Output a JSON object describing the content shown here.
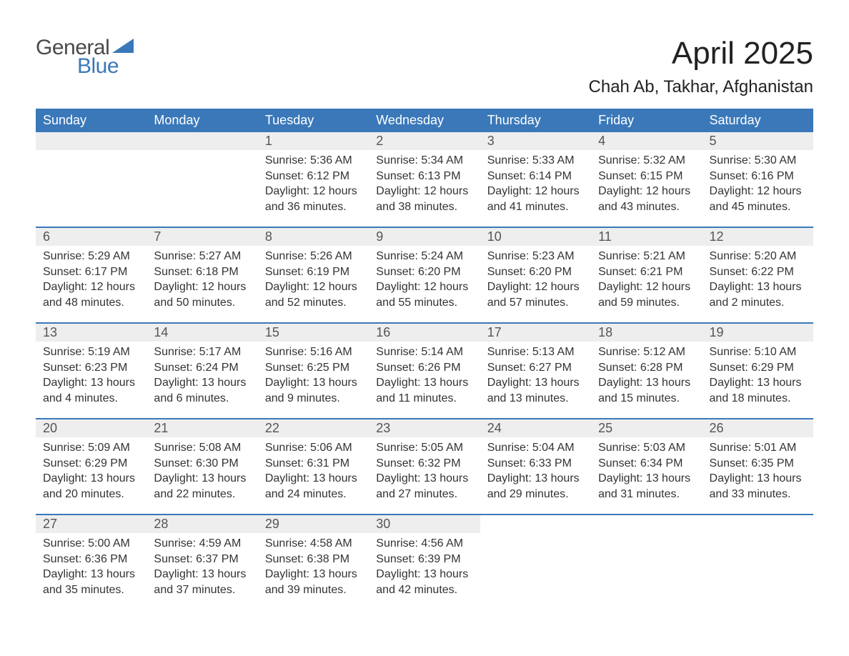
{
  "logo": {
    "text1": "General",
    "text2": "Blue",
    "tri_color": "#3a78b9"
  },
  "title": "April 2025",
  "location": "Chah Ab, Takhar, Afghanistan",
  "colors": {
    "header_bg": "#3a78b9",
    "header_text": "#ffffff",
    "daynum_bg": "#eeeeee",
    "row_border": "#3a78b9",
    "body_text": "#333333",
    "background": "#ffffff"
  },
  "fonts": {
    "title_size": 44,
    "location_size": 24,
    "header_size": 18,
    "cell_size": 16
  },
  "weekdays": [
    "Sunday",
    "Monday",
    "Tuesday",
    "Wednesday",
    "Thursday",
    "Friday",
    "Saturday"
  ],
  "weeks": [
    [
      null,
      null,
      {
        "n": "1",
        "sr": "Sunrise: 5:36 AM",
        "ss": "Sunset: 6:12 PM",
        "d1": "Daylight: 12 hours",
        "d2": "and 36 minutes."
      },
      {
        "n": "2",
        "sr": "Sunrise: 5:34 AM",
        "ss": "Sunset: 6:13 PM",
        "d1": "Daylight: 12 hours",
        "d2": "and 38 minutes."
      },
      {
        "n": "3",
        "sr": "Sunrise: 5:33 AM",
        "ss": "Sunset: 6:14 PM",
        "d1": "Daylight: 12 hours",
        "d2": "and 41 minutes."
      },
      {
        "n": "4",
        "sr": "Sunrise: 5:32 AM",
        "ss": "Sunset: 6:15 PM",
        "d1": "Daylight: 12 hours",
        "d2": "and 43 minutes."
      },
      {
        "n": "5",
        "sr": "Sunrise: 5:30 AM",
        "ss": "Sunset: 6:16 PM",
        "d1": "Daylight: 12 hours",
        "d2": "and 45 minutes."
      }
    ],
    [
      {
        "n": "6",
        "sr": "Sunrise: 5:29 AM",
        "ss": "Sunset: 6:17 PM",
        "d1": "Daylight: 12 hours",
        "d2": "and 48 minutes."
      },
      {
        "n": "7",
        "sr": "Sunrise: 5:27 AM",
        "ss": "Sunset: 6:18 PM",
        "d1": "Daylight: 12 hours",
        "d2": "and 50 minutes."
      },
      {
        "n": "8",
        "sr": "Sunrise: 5:26 AM",
        "ss": "Sunset: 6:19 PM",
        "d1": "Daylight: 12 hours",
        "d2": "and 52 minutes."
      },
      {
        "n": "9",
        "sr": "Sunrise: 5:24 AM",
        "ss": "Sunset: 6:20 PM",
        "d1": "Daylight: 12 hours",
        "d2": "and 55 minutes."
      },
      {
        "n": "10",
        "sr": "Sunrise: 5:23 AM",
        "ss": "Sunset: 6:20 PM",
        "d1": "Daylight: 12 hours",
        "d2": "and 57 minutes."
      },
      {
        "n": "11",
        "sr": "Sunrise: 5:21 AM",
        "ss": "Sunset: 6:21 PM",
        "d1": "Daylight: 12 hours",
        "d2": "and 59 minutes."
      },
      {
        "n": "12",
        "sr": "Sunrise: 5:20 AM",
        "ss": "Sunset: 6:22 PM",
        "d1": "Daylight: 13 hours",
        "d2": "and 2 minutes."
      }
    ],
    [
      {
        "n": "13",
        "sr": "Sunrise: 5:19 AM",
        "ss": "Sunset: 6:23 PM",
        "d1": "Daylight: 13 hours",
        "d2": "and 4 minutes."
      },
      {
        "n": "14",
        "sr": "Sunrise: 5:17 AM",
        "ss": "Sunset: 6:24 PM",
        "d1": "Daylight: 13 hours",
        "d2": "and 6 minutes."
      },
      {
        "n": "15",
        "sr": "Sunrise: 5:16 AM",
        "ss": "Sunset: 6:25 PM",
        "d1": "Daylight: 13 hours",
        "d2": "and 9 minutes."
      },
      {
        "n": "16",
        "sr": "Sunrise: 5:14 AM",
        "ss": "Sunset: 6:26 PM",
        "d1": "Daylight: 13 hours",
        "d2": "and 11 minutes."
      },
      {
        "n": "17",
        "sr": "Sunrise: 5:13 AM",
        "ss": "Sunset: 6:27 PM",
        "d1": "Daylight: 13 hours",
        "d2": "and 13 minutes."
      },
      {
        "n": "18",
        "sr": "Sunrise: 5:12 AM",
        "ss": "Sunset: 6:28 PM",
        "d1": "Daylight: 13 hours",
        "d2": "and 15 minutes."
      },
      {
        "n": "19",
        "sr": "Sunrise: 5:10 AM",
        "ss": "Sunset: 6:29 PM",
        "d1": "Daylight: 13 hours",
        "d2": "and 18 minutes."
      }
    ],
    [
      {
        "n": "20",
        "sr": "Sunrise: 5:09 AM",
        "ss": "Sunset: 6:29 PM",
        "d1": "Daylight: 13 hours",
        "d2": "and 20 minutes."
      },
      {
        "n": "21",
        "sr": "Sunrise: 5:08 AM",
        "ss": "Sunset: 6:30 PM",
        "d1": "Daylight: 13 hours",
        "d2": "and 22 minutes."
      },
      {
        "n": "22",
        "sr": "Sunrise: 5:06 AM",
        "ss": "Sunset: 6:31 PM",
        "d1": "Daylight: 13 hours",
        "d2": "and 24 minutes."
      },
      {
        "n": "23",
        "sr": "Sunrise: 5:05 AM",
        "ss": "Sunset: 6:32 PM",
        "d1": "Daylight: 13 hours",
        "d2": "and 27 minutes."
      },
      {
        "n": "24",
        "sr": "Sunrise: 5:04 AM",
        "ss": "Sunset: 6:33 PM",
        "d1": "Daylight: 13 hours",
        "d2": "and 29 minutes."
      },
      {
        "n": "25",
        "sr": "Sunrise: 5:03 AM",
        "ss": "Sunset: 6:34 PM",
        "d1": "Daylight: 13 hours",
        "d2": "and 31 minutes."
      },
      {
        "n": "26",
        "sr": "Sunrise: 5:01 AM",
        "ss": "Sunset: 6:35 PM",
        "d1": "Daylight: 13 hours",
        "d2": "and 33 minutes."
      }
    ],
    [
      {
        "n": "27",
        "sr": "Sunrise: 5:00 AM",
        "ss": "Sunset: 6:36 PM",
        "d1": "Daylight: 13 hours",
        "d2": "and 35 minutes."
      },
      {
        "n": "28",
        "sr": "Sunrise: 4:59 AM",
        "ss": "Sunset: 6:37 PM",
        "d1": "Daylight: 13 hours",
        "d2": "and 37 minutes."
      },
      {
        "n": "29",
        "sr": "Sunrise: 4:58 AM",
        "ss": "Sunset: 6:38 PM",
        "d1": "Daylight: 13 hours",
        "d2": "and 39 minutes."
      },
      {
        "n": "30",
        "sr": "Sunrise: 4:56 AM",
        "ss": "Sunset: 6:39 PM",
        "d1": "Daylight: 13 hours",
        "d2": "and 42 minutes."
      },
      null,
      null,
      null
    ]
  ]
}
